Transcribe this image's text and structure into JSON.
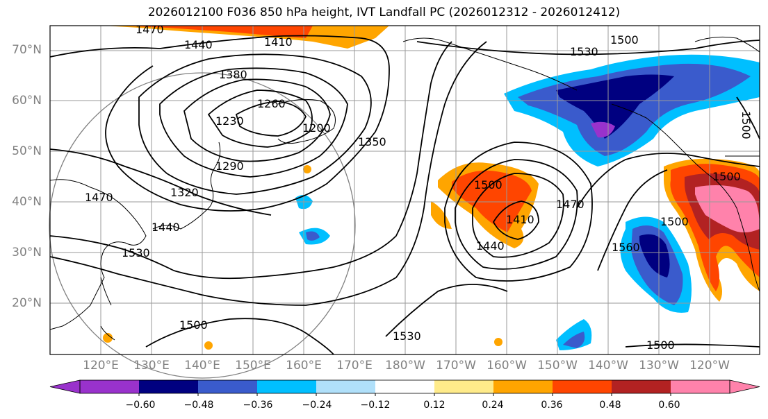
{
  "title": "2026012100 F036 850 hPa height, IVT Landfall PC (2026012312 - 2026012412)",
  "lat_labels": [
    "70°N",
    "60°N",
    "50°N",
    "40°N",
    "30°N",
    "20°N"
  ],
  "lon_labels": [
    "120°E",
    "130°E",
    "140°E",
    "150°E",
    "160°E",
    "170°E",
    "180°W",
    "170°W",
    "160°W",
    "150°W",
    "140°W",
    "130°W",
    "120°W"
  ],
  "colorbar": {
    "colors": [
      "#9932CC",
      "#000080",
      "#3A5BCC",
      "#00BFFF",
      "#B0E0FA",
      "#FFFFFF",
      "#FFEB8A",
      "#FFA500",
      "#FF4500",
      "#B22222",
      "#FF82AB"
    ],
    "ticks": [
      "−0.60",
      "−0.48",
      "−0.36",
      "−0.24",
      "−0.12",
      "0.12",
      "0.24",
      "0.36",
      "0.48",
      "0.60"
    ]
  },
  "contour_labels": [
    "1470",
    "1440",
    "1410",
    "1380",
    "1260",
    "1230",
    "1200",
    "1350",
    "1290",
    "1320",
    "1470",
    "1440",
    "1530",
    "1500",
    "1530",
    "1500",
    "1500",
    "1410",
    "1440",
    "1470",
    "1560",
    "1500",
    "1500",
    "1500",
    "1530",
    "1500"
  ],
  "legend": {
    "palette_name": "IVT Landfall PC",
    "field": "850 hPa height"
  }
}
